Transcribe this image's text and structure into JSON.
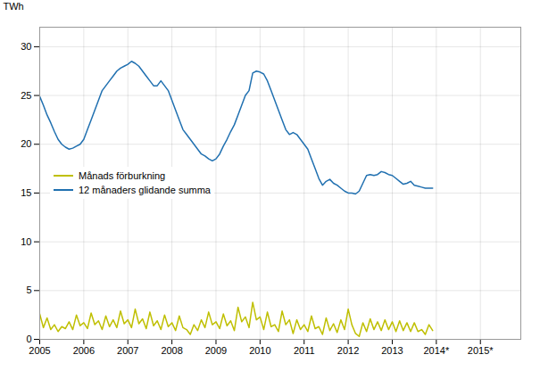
{
  "chart_data": {
    "type": "line",
    "ylabel": "TWh",
    "x": [
      2005,
      2005.0833333333333,
      2005.1666666666667,
      2005.25,
      2005.3333333333333,
      2005.4166666666667,
      2005.5,
      2005.5833333333333,
      2005.6666666666667,
      2005.75,
      2005.8333333333333,
      2005.9166666666667,
      2006,
      2006.0833333333333,
      2006.1666666666667,
      2006.25,
      2006.3333333333333,
      2006.4166666666667,
      2006.5,
      2006.5833333333333,
      2006.6666666666667,
      2006.75,
      2006.8333333333333,
      2006.9166666666667,
      2007,
      2007.0833333333333,
      2007.1666666666667,
      2007.25,
      2007.3333333333333,
      2007.4166666666667,
      2007.5,
      2007.5833333333333,
      2007.6666666666667,
      2007.75,
      2007.8333333333333,
      2007.9166666666667,
      2008,
      2008.0833333333333,
      2008.1666666666667,
      2008.25,
      2008.3333333333333,
      2008.4166666666667,
      2008.5,
      2008.5833333333333,
      2008.6666666666667,
      2008.75,
      2008.8333333333333,
      2008.9166666666667,
      2009,
      2009.0833333333333,
      2009.1666666666667,
      2009.25,
      2009.3333333333333,
      2009.4166666666667,
      2009.5,
      2009.5833333333333,
      2009.6666666666667,
      2009.75,
      2009.8333333333333,
      2009.9166666666667,
      2010,
      2010.0833333333333,
      2010.1666666666667,
      2010.25,
      2010.3333333333333,
      2010.4166666666667,
      2010.5,
      2010.5833333333333,
      2010.6666666666667,
      2010.75,
      2010.8333333333333,
      2010.9166666666667,
      2011,
      2011.0833333333333,
      2011.1666666666667,
      2011.25,
      2011.3333333333333,
      2011.4166666666667,
      2011.5,
      2011.5833333333333,
      2011.6666666666667,
      2011.75,
      2011.8333333333333,
      2011.9166666666667,
      2012,
      2012.0833333333333,
      2012.1666666666667,
      2012.25,
      2012.3333333333333,
      2012.4166666666667,
      2012.5,
      2012.5833333333333,
      2012.6666666666667,
      2012.75,
      2012.8333333333333,
      2012.9166666666667,
      2013,
      2013.0833333333333,
      2013.1666666666667,
      2013.25,
      2013.3333333333333,
      2013.4166666666667,
      2013.5,
      2013.5833333333333,
      2013.6666666666667,
      2013.75,
      2013.8333333333333,
      2013.9166666666667
    ],
    "series": [
      {
        "name": "Månads förburkning",
        "color": "#BFBF00",
        "values": [
          2.6,
          1.2,
          2.2,
          1.0,
          1.5,
          0.8,
          1.3,
          1.1,
          1.8,
          1.0,
          2.5,
          1.4,
          1.7,
          1.1,
          2.7,
          1.5,
          1.9,
          1.0,
          2.4,
          1.3,
          2.0,
          1.2,
          2.9,
          1.6,
          2.0,
          1.2,
          3.1,
          1.6,
          2.1,
          1.1,
          2.8,
          1.4,
          1.9,
          1.0,
          2.5,
          1.3,
          1.7,
          0.9,
          2.4,
          1.2,
          1.0,
          0.5,
          1.5,
          0.9,
          2.0,
          1.2,
          2.8,
          1.5,
          1.8,
          1.1,
          2.6,
          1.4,
          1.9,
          0.9,
          3.3,
          1.8,
          2.3,
          1.2,
          3.8,
          2.0,
          2.3,
          1.0,
          2.8,
          1.3,
          1.5,
          0.8,
          2.9,
          1.5,
          2.0,
          0.6,
          2.0,
          1.0,
          1.5,
          0.8,
          2.4,
          1.1,
          1.3,
          0.5,
          2.2,
          0.9,
          1.6,
          0.7,
          2.0,
          1.0,
          3.1,
          1.5,
          0.6,
          0.3,
          1.7,
          0.8,
          2.1,
          1.0,
          1.8,
          0.9,
          2.0,
          1.0,
          1.8,
          0.8,
          1.9,
          0.9,
          1.7,
          0.8,
          1.7,
          0.8,
          1.0,
          0.5,
          1.5,
          0.9
        ]
      },
      {
        "name": "12 månaders glidande summa",
        "color": "#2070B0",
        "values": [
          24.9,
          24.0,
          23.0,
          22.2,
          21.3,
          20.5,
          20.0,
          19.7,
          19.5,
          19.6,
          19.8,
          20.0,
          20.5,
          21.5,
          22.5,
          23.5,
          24.5,
          25.5,
          26.0,
          26.5,
          27.0,
          27.5,
          27.8,
          28.0,
          28.2,
          28.5,
          28.3,
          28.0,
          27.5,
          27.0,
          26.5,
          26.0,
          26.0,
          26.5,
          26.0,
          25.5,
          24.5,
          23.5,
          22.5,
          21.5,
          21.0,
          20.5,
          20.0,
          19.5,
          19.0,
          18.8,
          18.5,
          18.3,
          18.5,
          19.0,
          19.8,
          20.5,
          21.3,
          22.0,
          23.0,
          24.0,
          25.0,
          25.5,
          27.3,
          27.5,
          27.4,
          27.2,
          26.5,
          25.5,
          24.5,
          23.5,
          22.5,
          21.5,
          21.0,
          21.2,
          21.0,
          20.5,
          20.0,
          19.5,
          18.5,
          17.5,
          16.5,
          15.8,
          16.2,
          16.4,
          16.0,
          15.8,
          15.5,
          15.2,
          15.0,
          15.0,
          14.9,
          15.2,
          16.0,
          16.8,
          16.9,
          16.8,
          16.9,
          17.2,
          17.1,
          16.9,
          16.8,
          16.5,
          16.2,
          15.9,
          16.0,
          16.2,
          15.8,
          15.7,
          15.6,
          15.5,
          15.5,
          15.5
        ]
      }
    ],
    "xlim": [
      2005.0,
      2015.917
    ],
    "xticks": [
      2005,
      2006,
      2007,
      2008,
      2009,
      2010,
      2011,
      2012,
      2013,
      {
        "value": 2014,
        "label": "2014*"
      },
      {
        "value": 2015,
        "label": "2015*"
      }
    ],
    "ylim": [
      0,
      32
    ],
    "yticks": [
      0,
      5,
      10,
      15,
      20,
      25,
      30
    ],
    "grid": true,
    "legend": "center left"
  }
}
